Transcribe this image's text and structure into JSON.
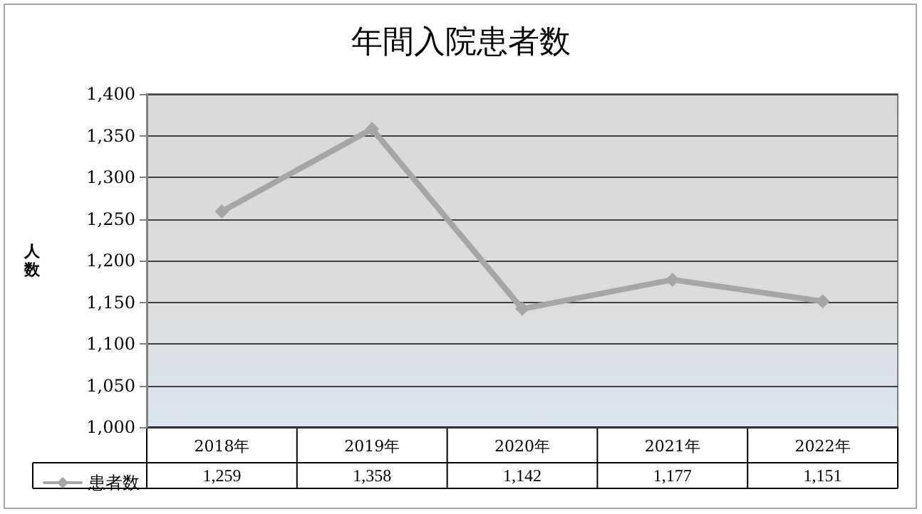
{
  "chart_data": {
    "type": "line",
    "title": "年間入院患者数",
    "ylabel": "人数",
    "categories": [
      "2018年",
      "2019年",
      "2020年",
      "2021年",
      "2022年"
    ],
    "series": [
      {
        "name": "患者数",
        "color": "#a6a6a6",
        "values": [
          1259,
          1358,
          1142,
          1177,
          1151
        ],
        "value_labels": [
          "1,259",
          "1,358",
          "1,142",
          "1,177",
          "1,151"
        ]
      }
    ],
    "ylim": [
      1000,
      1400
    ],
    "yticks": [
      {
        "value": 1000,
        "label": "1,000"
      },
      {
        "value": 1050,
        "label": "1,050"
      },
      {
        "value": 1100,
        "label": "1,100"
      },
      {
        "value": 1150,
        "label": "1,150"
      },
      {
        "value": 1200,
        "label": "1,200"
      },
      {
        "value": 1250,
        "label": "1,250"
      },
      {
        "value": 1300,
        "label": "1,300"
      },
      {
        "value": 1350,
        "label": "1,350"
      },
      {
        "value": 1400,
        "label": "1,400"
      }
    ],
    "grid": "y",
    "legend": "bottom",
    "marker": "diamond",
    "line_style": "solid"
  }
}
